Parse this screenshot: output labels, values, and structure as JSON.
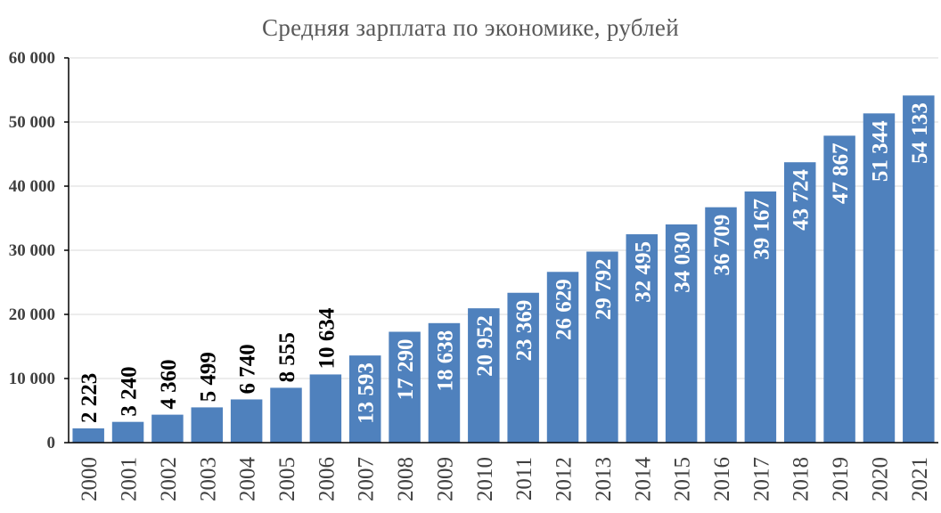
{
  "chart_data": {
    "type": "bar",
    "title": "Средняя зарплата  по экономике, рублей",
    "xlabel": "",
    "ylabel": "",
    "categories": [
      "2000",
      "2001",
      "2002",
      "2003",
      "2004",
      "2005",
      "2006",
      "2007",
      "2008",
      "2009",
      "2010",
      "2011",
      "2012",
      "2013",
      "2014",
      "2015",
      "2016",
      "2017",
      "2018",
      "2019",
      "2020",
      "2021"
    ],
    "values": [
      2223,
      3240,
      4360,
      5499,
      6740,
      8555,
      10634,
      13593,
      17290,
      18638,
      20952,
      23369,
      26629,
      29792,
      32495,
      34030,
      36709,
      39167,
      43724,
      47867,
      51344,
      54133
    ],
    "data_labels": [
      "2 223",
      "3 240",
      "4 360",
      "5 499",
      "6 740",
      "8 555",
      "10 634",
      "13 593",
      "17 290",
      "18 638",
      "20 952",
      "23 369",
      "26 629",
      "29 792",
      "32 495",
      "34 030",
      "36 709",
      "39 167",
      "43 724",
      "47 867",
      "51 344",
      "54 133"
    ],
    "ylim": [
      0,
      60000
    ],
    "yticks": [
      0,
      10000,
      20000,
      30000,
      40000,
      50000,
      60000
    ],
    "ytick_labels": [
      "0",
      "10 000",
      "20 000",
      "30 000",
      "40 000",
      "50 000",
      "60 000"
    ],
    "grid": true,
    "legend": "none",
    "colors": {
      "bar": "#4f81bd",
      "grid": "#d9d9d9",
      "axis": "#000000",
      "label_outside": "#000000",
      "label_inside": "#ffffff",
      "title": "#595959"
    }
  }
}
